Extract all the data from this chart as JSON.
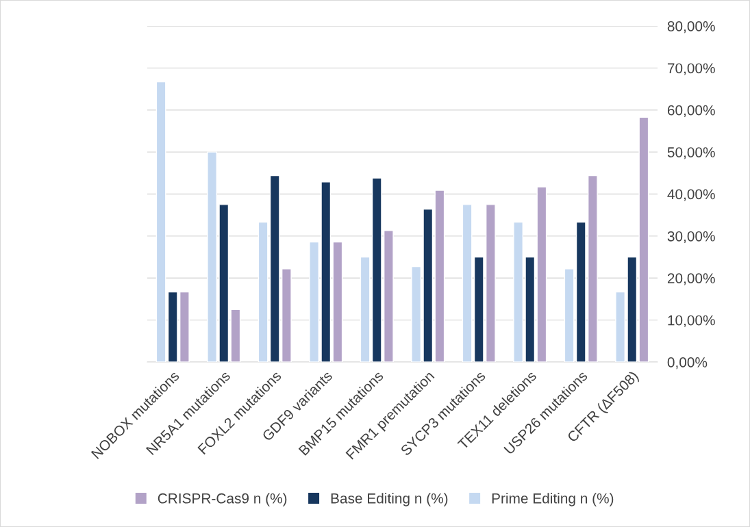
{
  "chart_data": {
    "type": "bar",
    "categories": [
      "NOBOX mutations",
      "NR5A1 mutations",
      "FOXL2 mutations",
      "GDF9 variants",
      "BMP15 mutations",
      "FMR1 premutation",
      "SYCP3 mutations",
      "TEX11 deletions",
      "USP26 mutations",
      "CFTR (ΔF508)"
    ],
    "series": [
      {
        "name": "Prime Editing n (%)",
        "color": "#c5d9f1",
        "values": [
          66.7,
          50.0,
          33.3,
          28.6,
          25.0,
          22.7,
          37.5,
          33.3,
          22.2,
          16.7
        ]
      },
      {
        "name": "Base Editing n (%)",
        "color": "#17375e",
        "values": [
          16.7,
          37.5,
          44.4,
          42.9,
          43.8,
          36.4,
          25.0,
          25.0,
          33.3,
          25.0
        ]
      },
      {
        "name": "CRISPR-Cas9 n (%)",
        "color": "#b2a2c7",
        "values": [
          16.7,
          12.5,
          22.2,
          28.6,
          31.3,
          40.9,
          37.5,
          41.7,
          44.4,
          58.3
        ]
      }
    ],
    "ylim": [
      0,
      80
    ],
    "yticks": [
      {
        "value": 0,
        "label": "0,00%"
      },
      {
        "value": 10,
        "label": "10,00%"
      },
      {
        "value": 20,
        "label": "20,00%"
      },
      {
        "value": 30,
        "label": "30,00%"
      },
      {
        "value": 40,
        "label": "40,00%"
      },
      {
        "value": 50,
        "label": "50,00%"
      },
      {
        "value": 60,
        "label": "60,00%"
      },
      {
        "value": 70,
        "label": "70,00%"
      },
      {
        "value": 80,
        "label": "80,00%"
      }
    ],
    "grid": "y",
    "legend": "bottom"
  }
}
